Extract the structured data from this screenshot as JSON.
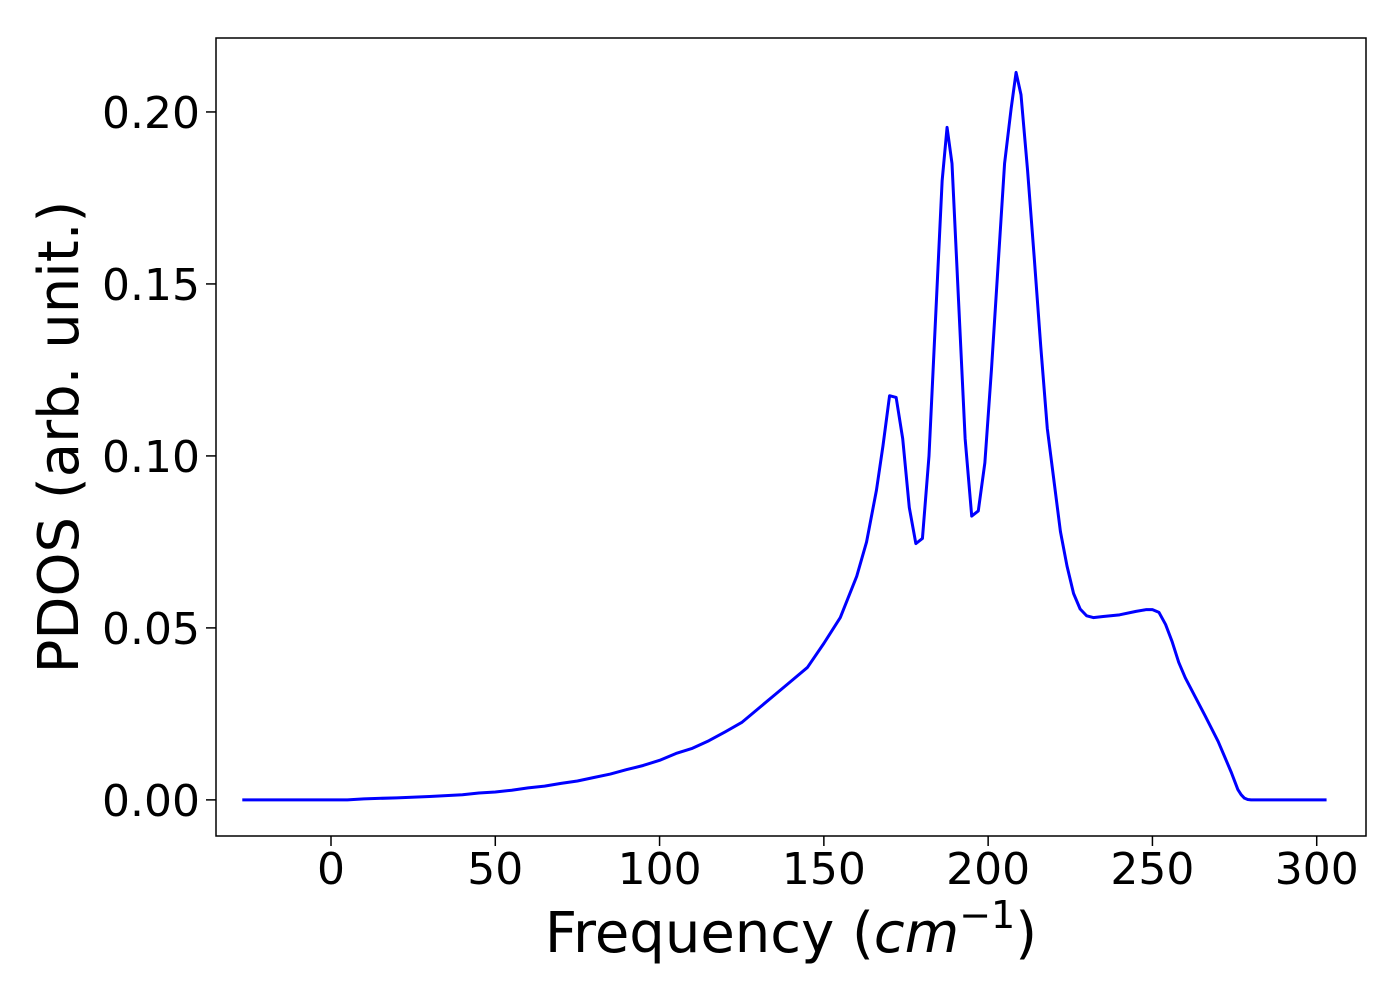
{
  "chart_data": {
    "type": "line",
    "xlabel_main": "Frequency (",
    "xlabel_unit": "cm",
    "xlabel_exp": "−1",
    "xlabel_close": ")",
    "ylabel": "PDOS (arb. unit.)",
    "xlim": [
      -35,
      315
    ],
    "ylim": [
      -0.0105,
      0.2215
    ],
    "xticks": [
      0,
      50,
      100,
      150,
      200,
      250,
      300
    ],
    "xtick_labels": [
      "0",
      "50",
      "100",
      "150",
      "200",
      "250",
      "300"
    ],
    "yticks": [
      0.0,
      0.05,
      0.1,
      0.15,
      0.2
    ],
    "ytick_labels": [
      "0.00",
      "0.05",
      "0.10",
      "0.15",
      "0.20"
    ],
    "grid": false,
    "line_color": "#0000ff",
    "series": [
      {
        "x": [
          -27,
          0,
          5,
          10,
          20,
          30,
          40,
          45,
          50,
          55,
          60,
          65,
          70,
          75,
          80,
          85,
          90,
          95,
          100,
          105,
          110,
          115,
          120,
          125,
          130,
          135,
          140,
          145,
          150,
          155,
          160,
          163,
          166,
          168,
          170,
          172,
          174,
          176,
          178,
          180,
          182,
          184,
          186,
          187.5,
          189,
          191,
          193,
          195,
          197,
          199,
          201,
          203,
          205,
          207,
          208.5,
          210,
          212,
          214,
          216,
          218,
          220,
          222,
          224,
          226,
          228,
          230,
          232,
          235,
          240,
          245,
          248,
          250,
          252,
          254,
          256,
          258,
          260,
          263,
          266,
          270,
          272,
          274,
          275,
          276,
          277,
          278,
          279,
          280,
          282,
          290,
          300,
          303
        ],
        "y": [
          0.0,
          0.0,
          0.0,
          0.0003,
          0.0006,
          0.001,
          0.0015,
          0.002,
          0.0023,
          0.0028,
          0.0035,
          0.004,
          0.0048,
          0.0055,
          0.0065,
          0.0075,
          0.0088,
          0.01,
          0.0115,
          0.0135,
          0.015,
          0.0172,
          0.0198,
          0.0225,
          0.0265,
          0.0305,
          0.0345,
          0.0385,
          0.0455,
          0.053,
          0.065,
          0.075,
          0.09,
          0.103,
          0.1175,
          0.117,
          0.105,
          0.085,
          0.0745,
          0.076,
          0.1,
          0.14,
          0.18,
          0.1955,
          0.185,
          0.145,
          0.105,
          0.0825,
          0.084,
          0.098,
          0.125,
          0.155,
          0.185,
          0.201,
          0.2115,
          0.205,
          0.183,
          0.158,
          0.132,
          0.108,
          0.093,
          0.078,
          0.068,
          0.06,
          0.0555,
          0.0535,
          0.053,
          0.0533,
          0.0538,
          0.0548,
          0.0553,
          0.0553,
          0.0545,
          0.051,
          0.046,
          0.04,
          0.0355,
          0.03,
          0.0245,
          0.017,
          0.0125,
          0.008,
          0.0055,
          0.003,
          0.0015,
          0.0005,
          0.0001,
          0.0,
          0.0,
          0.0,
          0.0,
          0.0
        ]
      }
    ]
  }
}
